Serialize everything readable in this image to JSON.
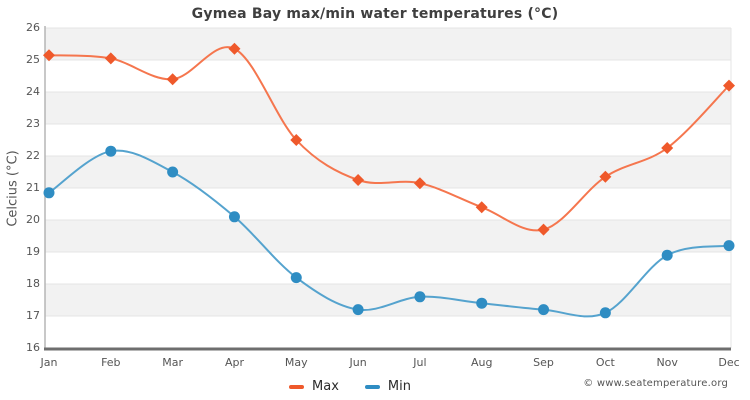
{
  "title": "Gymea Bay max/min water temperatures (°C)",
  "y_axis_title": "Celcius (°C)",
  "copyright": "© www.seatemperature.org",
  "colors": {
    "max_line": "#f5764e",
    "max_marker": "#ef592b",
    "min_line": "#55a3ce",
    "min_marker": "#2f8dc3",
    "plot_band": "#f2f2f2",
    "gridline": "#e4e4e4",
    "y_axis_line": "#b5b5b5",
    "x_axis_line": "#6e6e6e",
    "title_text": "#3f3f3f",
    "tick_text": "#555555",
    "legend_text": "#2b2b2b",
    "copyright_text": "#555555"
  },
  "chart_data": {
    "type": "line",
    "title": "Gymea Bay max/min water temperatures (°C)",
    "xlabel": "",
    "ylabel": "Celcius (°C)",
    "categories": [
      "Jan",
      "Feb",
      "Mar",
      "Apr",
      "May",
      "Jun",
      "Jul",
      "Aug",
      "Sep",
      "Oct",
      "Nov",
      "Dec"
    ],
    "series": [
      {
        "name": "Max",
        "marker": "diamond",
        "line_color_key": "max_line",
        "marker_color_key": "max_marker",
        "values": [
          25.15,
          25.05,
          24.4,
          25.35,
          22.5,
          21.25,
          21.15,
          20.4,
          19.7,
          21.35,
          22.25,
          24.2
        ]
      },
      {
        "name": "Min",
        "marker": "circle",
        "line_color_key": "min_line",
        "marker_color_key": "min_marker",
        "values": [
          20.85,
          22.15,
          21.5,
          20.1,
          18.2,
          17.2,
          17.6,
          17.4,
          17.2,
          17.1,
          18.9,
          19.2
        ]
      }
    ],
    "ylim": [
      16,
      26
    ],
    "y_ticks": [
      16,
      17,
      18,
      19,
      20,
      21,
      22,
      23,
      24,
      25,
      26
    ],
    "grid": "alternating-horizontal-bands",
    "legend_position": "bottom-center",
    "smooth": true
  }
}
